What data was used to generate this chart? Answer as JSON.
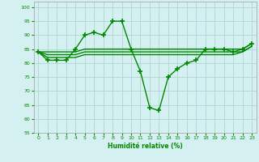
{
  "xlabel": "Humidité relative (%)",
  "background_color": "#d4f0f0",
  "grid_color": "#b0d4d4",
  "line_color": "#008800",
  "ylim": [
    55,
    102
  ],
  "xlim": [
    -0.5,
    23.5
  ],
  "yticks": [
    55,
    60,
    65,
    70,
    75,
    80,
    85,
    90,
    95,
    100
  ],
  "xticks": [
    0,
    1,
    2,
    3,
    4,
    5,
    6,
    7,
    8,
    9,
    10,
    11,
    12,
    13,
    14,
    15,
    16,
    17,
    18,
    19,
    20,
    21,
    22,
    23
  ],
  "main_series": [
    84,
    81,
    81,
    81,
    85,
    90,
    91,
    90,
    95,
    95,
    85,
    77,
    64,
    63,
    75,
    78,
    80,
    81,
    85,
    85,
    85,
    84,
    85,
    87
  ],
  "smooth1": [
    84,
    84,
    84,
    84,
    84,
    85,
    85,
    85,
    85,
    85,
    85,
    85,
    85,
    85,
    85,
    85,
    85,
    85,
    85,
    85,
    85,
    85,
    85,
    87
  ],
  "smooth2": [
    84,
    83,
    83,
    83,
    83,
    84,
    84,
    84,
    84,
    84,
    84,
    84,
    84,
    84,
    84,
    84,
    84,
    84,
    84,
    84,
    84,
    84,
    84,
    86
  ],
  "smooth3": [
    84,
    82,
    82,
    82,
    82,
    83,
    83,
    83,
    83,
    83,
    83,
    83,
    83,
    83,
    83,
    83,
    83,
    83,
    83,
    83,
    83,
    83,
    84,
    86
  ]
}
